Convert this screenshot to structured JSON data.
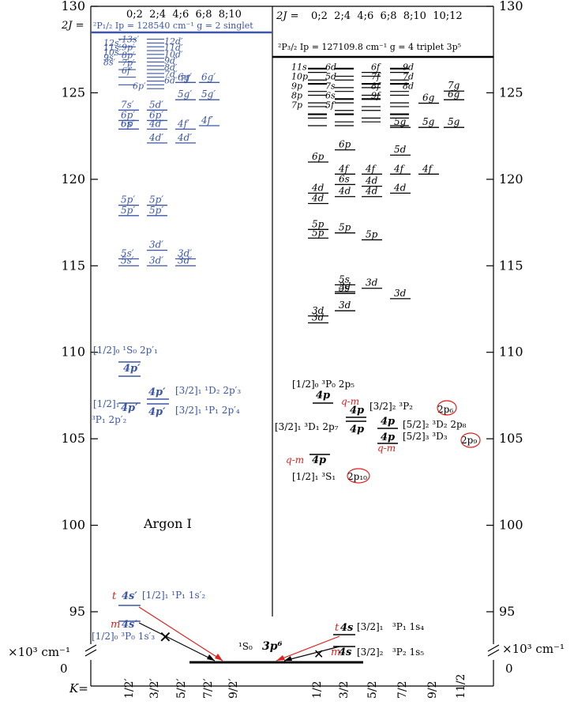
{
  "axis": {
    "unit_label": "×10³ cm⁻¹",
    "zero_label": "0",
    "k_label": "K=",
    "ticks": [
      95,
      100,
      105,
      110,
      115,
      120,
      125,
      130
    ]
  },
  "title": "Argon I",
  "colors": {
    "singlet": "#3b56a8",
    "triplet": "#000000",
    "highlight": "#e0201b",
    "axis": "#000000"
  },
  "left_panel": {
    "header_2j_label": "2J =",
    "header_2j_values": "0;2  2;4  4;6  6;8  8;10",
    "limit_label": "²P₁/₂  Ip = 128540 cm⁻¹  g = 2 singlet",
    "limit_value": 128.54,
    "k_labels": [
      "1/2′",
      "3/2′",
      "5/2′",
      "7/2′",
      "9/2′"
    ]
  },
  "right_panel": {
    "header_2j_label": "2J =",
    "header_2j_values": "0;2  2;4  4;6  6;8  8;10  10;12",
    "limit_label": "²P₃/₂  Ip = 127109.8 cm⁻¹  g = 4 triplet  3p⁵",
    "limit_value": 127.11,
    "k_labels": [
      "1/2",
      "3/2",
      "5/2",
      "7/2",
      "9/2",
      "11/2"
    ]
  },
  "ground": {
    "label": "¹S₀",
    "config": "3p⁶"
  },
  "left_levels": [
    {
      "col": 0,
      "e": 115.4,
      "label": "5s′"
    },
    {
      "col": 0,
      "e": 115.0,
      "label": "5s′"
    },
    {
      "col": 0,
      "e": 122.9,
      "label": "6s′"
    },
    {
      "col": 0,
      "e": 124.0,
      "label": "7s′"
    },
    {
      "col": 0,
      "e": 118.5,
      "label": "5p′"
    },
    {
      "col": 0,
      "e": 117.9,
      "label": "5p′"
    },
    {
      "col": 0,
      "e": 123.4,
      "label": "6p′"
    },
    {
      "col": 0,
      "e": 122.9,
      "label": "6p′"
    },
    {
      "col": 1,
      "e": 115.9,
      "label": "3d′"
    },
    {
      "col": 1,
      "e": 115.0,
      "label": "3d′"
    },
    {
      "col": 1,
      "e": 122.9,
      "label": "4d′"
    },
    {
      "col": 1,
      "e": 122.1,
      "label": "4d′"
    },
    {
      "col": 1,
      "e": 124.0,
      "label": "5d′"
    },
    {
      "col": 1,
      "e": 118.5,
      "label": "5p′"
    },
    {
      "col": 1,
      "e": 117.9,
      "label": "5p′"
    },
    {
      "col": 1,
      "e": 123.4,
      "label": "6p′"
    },
    {
      "col": 2,
      "e": 115.4,
      "label": "3d′"
    },
    {
      "col": 2,
      "e": 115.0,
      "label": "3d′"
    },
    {
      "col": 2,
      "e": 122.9,
      "label": "4f′"
    },
    {
      "col": 2,
      "e": 122.1,
      "label": "4d′"
    },
    {
      "col": 3,
      "e": 123.1,
      "label": "4f′"
    },
    {
      "col": 2,
      "e": 124.6,
      "label": "5g′"
    },
    {
      "col": 3,
      "e": 124.6,
      "label": "5g′"
    },
    {
      "col": 2,
      "e": 125.6,
      "label": "6g′"
    },
    {
      "col": 3,
      "e": 125.6,
      "label": "6g′"
    }
  ],
  "left_series_labels": {
    "s_series": [
      "12s′",
      "11s′",
      "10s′",
      "9s′",
      "8s′"
    ],
    "d_series": [
      "12d′",
      "11d′",
      "10d′",
      "9d′",
      "8d′",
      "7d′",
      "6d′"
    ],
    "p_series": [
      "13s′",
      "9p′",
      "8p′",
      "7p′",
      "6f′",
      "7f′",
      "6p′"
    ]
  },
  "right_levels": [
    {
      "col": 0,
      "e": 112.1,
      "label": "3d"
    },
    {
      "col": 0,
      "e": 111.7,
      "label": "3d"
    },
    {
      "col": 0,
      "e": 117.1,
      "label": "5p"
    },
    {
      "col": 0,
      "e": 116.6,
      "label": "5p"
    },
    {
      "col": 0,
      "e": 119.2,
      "label": "4d"
    },
    {
      "col": 0,
      "e": 118.6,
      "label": "4d"
    },
    {
      "col": 0,
      "e": 121.0,
      "label": "6p"
    },
    {
      "col": 1,
      "e": 113.5,
      "label": "3d"
    },
    {
      "col": 1,
      "e": 112.4,
      "label": "3d"
    },
    {
      "col": 1,
      "e": 113.9,
      "label": "5s"
    },
    {
      "col": 1,
      "e": 113.4,
      "label": "5s"
    },
    {
      "col": 1,
      "e": 116.9,
      "label": "5p"
    },
    {
      "col": 1,
      "e": 119.7,
      "label": "6s"
    },
    {
      "col": 1,
      "e": 119.0,
      "label": "4d"
    },
    {
      "col": 1,
      "e": 120.3,
      "label": "4f"
    },
    {
      "col": 1,
      "e": 121.7,
      "label": "6p"
    },
    {
      "col": 2,
      "e": 113.7,
      "label": "3d"
    },
    {
      "col": 2,
      "e": 116.5,
      "label": "5p"
    },
    {
      "col": 2,
      "e": 119.6,
      "label": "4d"
    },
    {
      "col": 2,
      "e": 119.0,
      "label": "4d"
    },
    {
      "col": 2,
      "e": 120.3,
      "label": "4f"
    },
    {
      "col": 3,
      "e": 113.1,
      "label": "3d"
    },
    {
      "col": 3,
      "e": 120.3,
      "label": "4f"
    },
    {
      "col": 3,
      "e": 119.2,
      "label": "4d"
    },
    {
      "col": 3,
      "e": 121.4,
      "label": "5d"
    },
    {
      "col": 4,
      "e": 120.3,
      "label": "4f"
    },
    {
      "col": 4,
      "e": 123.0,
      "label": "5g"
    },
    {
      "col": 3,
      "e": 123.0,
      "label": "5g"
    },
    {
      "col": 4,
      "e": 124.4,
      "label": "6g"
    },
    {
      "col": 5,
      "e": 124.6,
      "label": "6g"
    },
    {
      "col": 5,
      "e": 125.1,
      "label": "7g"
    },
    {
      "col": 5,
      "e": 123.0,
      "label": "5g"
    }
  ],
  "right_series_labels": [
    "11s",
    "10p",
    "9p",
    "8p",
    "7p",
    "6d",
    "5d",
    "7s",
    "6s",
    "5f",
    "6f",
    "7f",
    "8f",
    "9f",
    "9d",
    "7d",
    "8d"
  ],
  "p4_levels": {
    "left": [
      {
        "x": "p1",
        "e": 108.7,
        "label": "4p′",
        "desc": "[1/2]₀ ¹S₀  2p′₁"
      },
      {
        "x": "p1",
        "e": 107.1,
        "label": "4p′",
        "desc": "[1/2]₁"
      },
      {
        "x": "p2",
        "e": 107.3,
        "label": "4p′",
        "desc": "[3/2]₁ ¹D₂  2p′₃"
      },
      {
        "x": "p2",
        "e": 106.8,
        "label": "4p′",
        "desc": "[3/2]₁ ¹P₁  2p′₄"
      }
    ],
    "right": [
      {
        "x": "r1",
        "e": 107.4,
        "label": "4p",
        "desc": "[1/2]₀ ³P₀  2p₅"
      },
      {
        "x": "r2",
        "e": 106.5,
        "label": "4p",
        "desc": "[3/2]₂ ³P₂  2p₆"
      },
      {
        "x": "r2",
        "e": 106.1,
        "label": "4p",
        "desc": "[3/2]₁ ³D₁  2p₇"
      },
      {
        "x": "r3",
        "e": 105.5,
        "label": "4p",
        "desc": "[5/2]₂ ³D₂  2p₈"
      },
      {
        "x": "r3",
        "e": 105.1,
        "label": "4p",
        "desc": "[5/2]₃ ³D₃  2p₉"
      },
      {
        "x": "r1",
        "e": 103.1,
        "label": "4p",
        "desc": "[1/2]₁ ³S₁  2p₁₀"
      }
    ]
  },
  "p4_texts": {
    "left_row1": "[1/2]₀ ¹S₀  2p′₁",
    "left_row2": "[1/2]₁",
    "left_row3": "³P₁ 2p′₂",
    "left_mid1": "[3/2]₁ ¹D₂  2p′₃",
    "left_mid2": "[3/2]₁ ¹P₁  2p′₄",
    "r_a": "[1/2]₀ ³P₀  2p₅",
    "r_b": "[3/2]₂  ³P₂",
    "r_b_circ": "2p₆",
    "r_c": "[3/2]₁ ³D₁  2p₇",
    "r_d": "[5/2]₂  ³D₂  2p₈",
    "r_e": "[5/2]₃  ³D₃",
    "r_e_circ": "2p₉",
    "r_f": "[1/2]₁  ³S₁",
    "r_f_circ": "2p₁₀",
    "qm": "q-m"
  },
  "s4_levels": {
    "left_t": {
      "e": 95.4,
      "tag": "t",
      "label": "4s′",
      "desc": "[1/2]₁ ¹P₁ 1s′₂"
    },
    "left_m": {
      "e": 94.0,
      "tag": "m",
      "label": "4s′",
      "desc": "[1/2]₀ ³P₀ 1s′₃"
    },
    "right_t": {
      "e": 93.8,
      "tag": "t",
      "label": "4s",
      "desc": "[3/2]₁   ³P₁ 1s₄"
    },
    "right_m": {
      "e": 93.2,
      "tag": "m",
      "label": "4s",
      "desc": "[3/2]₂   ³P₂ 1s₅"
    }
  }
}
